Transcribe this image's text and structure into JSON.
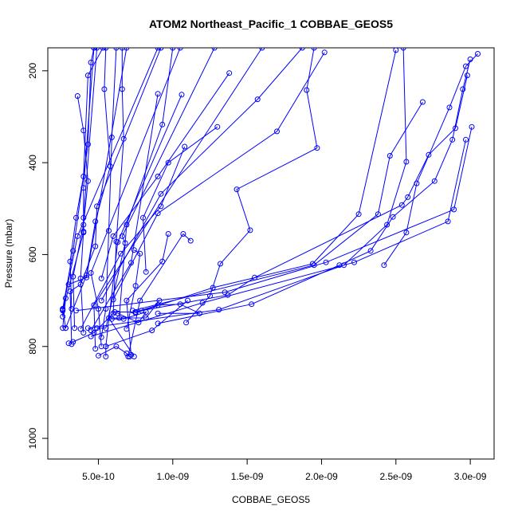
{
  "chart_data": {
    "type": "line",
    "title": "ATOM2 Northeast_Pacific_1 COBBAE_GEOS5",
    "xlabel": "COBBAE_GEOS5",
    "ylabel": "Pressure (mbar)",
    "xlim": [
      1.6e-10,
      3.16e-09
    ],
    "ylim": [
      1045,
      150
    ],
    "y_reversed": true,
    "x_ticks": [
      5e-10,
      1e-09,
      1.5e-09,
      2e-09,
      2.5e-09,
      3e-09
    ],
    "x_tick_labels": [
      "5.0e-10",
      "1.0e-09",
      "1.5e-09",
      "2.0e-09",
      "2.5e-09",
      "3.0e-09"
    ],
    "y_ticks": [
      200,
      400,
      600,
      800,
      1000
    ],
    "y_tick_labels": [
      "200",
      "400",
      "600",
      "800",
      "1000"
    ],
    "grid": false,
    "legend": "none",
    "color": "#0000ff",
    "series": [
      {
        "points": [
          [
            3.05e-09,
            163
          ],
          [
            2.97e-09,
            190
          ],
          [
            2.86e-09,
            280
          ],
          [
            2.64e-09,
            445
          ],
          [
            2.57e-09,
            552
          ],
          [
            2.42e-09,
            623
          ]
        ]
      },
      {
        "points": [
          [
            3e-09,
            175
          ],
          [
            2.95e-09,
            240
          ],
          [
            2.88e-09,
            350
          ],
          [
            2.76e-09,
            440
          ],
          [
            2.48e-09,
            518
          ],
          [
            2.33e-09,
            592
          ],
          [
            2.12e-09,
            623
          ],
          [
            1.53e-09,
            708
          ],
          [
            9e-10,
            750
          ]
        ]
      },
      {
        "points": [
          [
            2.98e-09,
            210
          ],
          [
            2.9e-09,
            325
          ],
          [
            2.72e-09,
            383
          ],
          [
            2.58e-09,
            475
          ],
          [
            2.54e-09,
            492
          ],
          [
            1.55e-09,
            650
          ],
          [
            1.37e-09,
            688
          ],
          [
            7.9e-10,
            722
          ]
        ]
      },
      {
        "points": [
          [
            3.01e-09,
            322
          ],
          [
            2.89e-09,
            502
          ],
          [
            2.03e-09,
            617
          ],
          [
            1.35e-09,
            682
          ],
          [
            3.5e-10,
            722
          ]
        ]
      },
      {
        "points": [
          [
            2.97e-09,
            350
          ],
          [
            2.85e-09,
            528
          ],
          [
            2.22e-09,
            617
          ],
          [
            1.2e-09,
            705
          ],
          [
            4.5e-10,
            778
          ]
        ]
      },
      {
        "points": [
          [
            2.68e-09,
            268
          ],
          [
            2.46e-09,
            385
          ],
          [
            2.38e-09,
            512
          ],
          [
            1.95e-09,
            623
          ],
          [
            7.3e-10,
            722
          ]
        ]
      },
      {
        "points": [
          [
            2.55e-09,
            150
          ],
          [
            2.57e-09,
            398
          ],
          [
            2.44e-09,
            535
          ],
          [
            2.15e-09,
            623
          ],
          [
            1.31e-09,
            720
          ],
          [
            4.3e-10,
            760
          ]
        ]
      },
      {
        "points": [
          [
            2.5e-09,
            155
          ],
          [
            2.25e-09,
            512
          ],
          [
            1.94e-09,
            620
          ],
          [
            1.27e-09,
            672
          ],
          [
            7.5e-10,
            727
          ]
        ]
      },
      {
        "points": [
          [
            1e-09,
            150
          ],
          [
            9.3e-10,
            317
          ],
          [
            6.9e-10,
            535
          ],
          [
            6.4e-10,
            738
          ]
        ]
      },
      {
        "points": [
          [
            1.95e-09,
            150
          ],
          [
            1.9e-09,
            242
          ],
          [
            1.97e-09,
            368
          ],
          [
            1.43e-09,
            458
          ],
          [
            1.52e-09,
            547
          ],
          [
            1.32e-09,
            620
          ],
          [
            1.25e-09,
            690
          ],
          [
            1.09e-09,
            748
          ]
        ]
      },
      {
        "points": [
          [
            2.02e-09,
            160
          ],
          [
            1.7e-09,
            332
          ],
          [
            9e-10,
            510
          ],
          [
            6e-10,
            698
          ]
        ]
      },
      {
        "points": [
          [
            1.87e-09,
            150
          ],
          [
            1.57e-09,
            262
          ],
          [
            9.2e-10,
            468
          ],
          [
            5.2e-10,
            700
          ]
        ]
      },
      {
        "points": [
          [
            1.38e-09,
            205
          ],
          [
            9e-10,
            430
          ],
          [
            6e-10,
            560
          ],
          [
            5.2e-10,
            652
          ]
        ]
      },
      {
        "points": [
          [
            1.3e-09,
            322
          ],
          [
            9.7e-10,
            400
          ],
          [
            8e-10,
            520
          ],
          [
            8.2e-10,
            638
          ]
        ]
      },
      {
        "points": [
          [
            1.08e-09,
            365
          ],
          [
            9.2e-10,
            495
          ],
          [
            6.5e-10,
            598
          ],
          [
            3.8e-10,
            762
          ]
        ]
      },
      {
        "points": [
          [
            9e-10,
            250
          ],
          [
            7.2e-10,
            618
          ],
          [
            4.5e-10,
            765
          ]
        ]
      },
      {
        "points": [
          [
            1.06e-09,
            252
          ],
          [
            6.3e-10,
            573
          ],
          [
            5.5e-10,
            800
          ],
          [
            5.5e-10,
            822
          ]
        ]
      },
      {
        "points": [
          [
            6.6e-10,
            150
          ],
          [
            6.6e-10,
            240
          ],
          [
            6.7e-10,
            348
          ],
          [
            6.2e-10,
            572
          ],
          [
            6e-10,
            728
          ]
        ]
      },
      {
        "points": [
          [
            5.3e-10,
            150
          ],
          [
            4.3e-10,
            210
          ],
          [
            4e-10,
            430
          ],
          [
            3.5e-10,
            520
          ],
          [
            3.1e-10,
            615
          ],
          [
            3.2e-10,
            718
          ]
        ]
      },
      {
        "points": [
          [
            4.7e-10,
            150
          ],
          [
            4.5e-10,
            182
          ],
          [
            4.3e-10,
            360
          ],
          [
            3.3e-10,
            592
          ],
          [
            2.6e-10,
            718
          ],
          [
            2.8e-10,
            760
          ]
        ]
      },
      {
        "points": [
          [
            4.9e-10,
            150
          ],
          [
            4e-10,
            520
          ],
          [
            4e-10,
            552
          ],
          [
            2.6e-10,
            722
          ],
          [
            2.6e-10,
            735
          ]
        ]
      },
      {
        "points": [
          [
            6.2e-10,
            150
          ],
          [
            5.9e-10,
            345
          ],
          [
            5.7e-10,
            548
          ],
          [
            5.5e-10,
            718
          ],
          [
            5.2e-10,
            780
          ]
        ]
      },
      {
        "points": [
          [
            5.5e-10,
            150
          ],
          [
            5.4e-10,
            240
          ],
          [
            5.8e-10,
            408
          ],
          [
            4.8e-10,
            528
          ],
          [
            4.2e-10,
            645
          ],
          [
            2.8e-10,
            760
          ]
        ]
      },
      {
        "points": [
          [
            3.6e-10,
            255
          ],
          [
            4e-10,
            330
          ],
          [
            4.3e-10,
            440
          ],
          [
            4e-10,
            535
          ],
          [
            3.3e-10,
            648
          ],
          [
            3.4e-10,
            760
          ]
        ]
      },
      {
        "points": [
          [
            4.7e-10,
            150
          ],
          [
            4e-10,
            455
          ],
          [
            4e-10,
            550
          ],
          [
            3.8e-10,
            652
          ],
          [
            4e-10,
            770
          ]
        ]
      },
      {
        "points": [
          [
            6.9e-10,
            150
          ],
          [
            4.2e-10,
            650
          ],
          [
            3e-10,
            665
          ]
        ]
      },
      {
        "points": [
          [
            9.2e-10,
            150
          ],
          [
            4.9e-10,
            495
          ],
          [
            4.8e-10,
            582
          ],
          [
            3.8e-10,
            665
          ],
          [
            3.1e-10,
            680
          ],
          [
            3.2e-10,
            795
          ]
        ]
      },
      {
        "points": [
          [
            1.6e-09,
            150
          ],
          [
            4.7e-10,
            710
          ],
          [
            4.8e-10,
            805
          ]
        ]
      },
      {
        "points": [
          [
            9e-10,
            150
          ],
          [
            3.6e-10,
            560
          ],
          [
            2.6e-10,
            720
          ]
        ]
      },
      {
        "points": [
          [
            1.28e-09,
            150
          ],
          [
            6.6e-10,
            560
          ],
          [
            6.8e-10,
            575
          ],
          [
            5.5e-10,
            760
          ],
          [
            4.9e-10,
            760
          ]
        ]
      },
      {
        "points": [
          [
            1.05e-09,
            150
          ],
          [
            4.5e-10,
            640
          ],
          [
            5e-10,
            718
          ],
          [
            5.2e-10,
            800
          ]
        ]
      },
      {
        "points": [
          [
            2.8e-10,
            695
          ],
          [
            2.6e-10,
            760
          ]
        ]
      },
      {
        "points": [
          [
            9.7e-10,
            555
          ],
          [
            9.3e-10,
            615
          ],
          [
            6.9e-10,
            700
          ],
          [
            7.2e-10,
            818
          ]
        ]
      },
      {
        "points": [
          [
            1.12e-09,
            570
          ],
          [
            1.07e-09,
            555
          ],
          [
            7.8e-10,
            700
          ],
          [
            7e-10,
            822
          ]
        ]
      },
      {
        "points": [
          [
            7.4e-10,
            590
          ],
          [
            7.8e-10,
            598
          ],
          [
            7.5e-10,
            668
          ],
          [
            6.9e-10,
            762
          ]
        ]
      },
      {
        "points": [
          [
            9.1e-10,
            700
          ],
          [
            8.2e-10,
            738
          ],
          [
            5.7e-10,
            738
          ],
          [
            7.4e-10,
            822
          ]
        ]
      },
      {
        "points": [
          [
            1.1e-09,
            700
          ],
          [
            8.6e-10,
            765
          ],
          [
            5.5e-10,
            800
          ]
        ]
      },
      {
        "points": [
          [
            3e-10,
            793
          ],
          [
            3.3e-10,
            790
          ],
          [
            4.7e-10,
            770
          ],
          [
            6.1e-10,
            725
          ],
          [
            7.5e-10,
            725
          ],
          [
            9e-10,
            710
          ],
          [
            1.05e-09,
            708
          ],
          [
            1.18e-09,
            728
          ],
          [
            9e-10,
            728
          ]
        ]
      },
      {
        "points": [
          [
            5e-10,
            820
          ],
          [
            6.2e-10,
            800
          ],
          [
            6.9e-10,
            815
          ],
          [
            7.1e-10,
            822
          ]
        ]
      },
      {
        "points": [
          [
            5.9e-10,
            740
          ],
          [
            6.7e-10,
            740
          ],
          [
            8.2e-10,
            725
          ],
          [
            7.7e-10,
            748
          ],
          [
            6.3e-10,
            728
          ]
        ]
      }
    ]
  }
}
